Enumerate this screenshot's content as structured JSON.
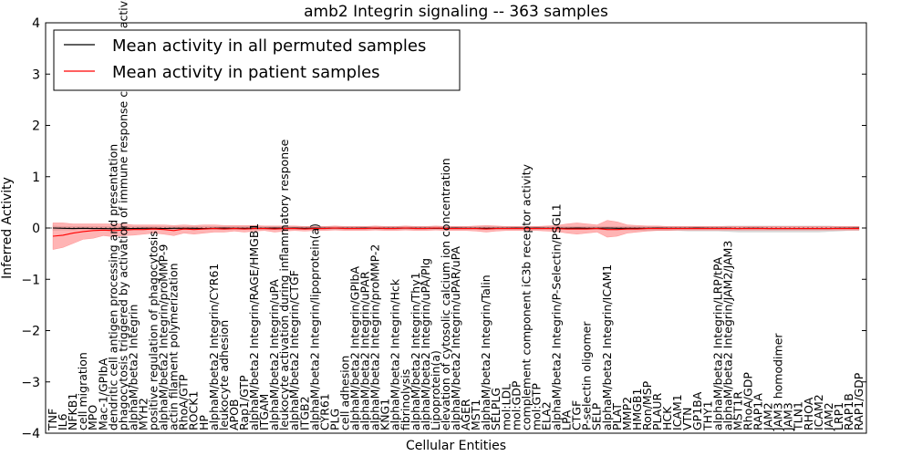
{
  "chart_data": {
    "type": "line",
    "title": "amb2 Integrin signaling -- 363 samples",
    "xlabel": "Cellular Entities",
    "ylabel": "Inferred Activity",
    "ylim": [
      -4,
      4
    ],
    "yticks": [
      "4",
      "3",
      "2",
      "1",
      "0",
      "−1",
      "−2",
      "−3",
      "−4"
    ],
    "grid": false,
    "legend_position": "top-left",
    "colors": {
      "permuted": "#000000",
      "patient": "#ff0000",
      "band_patient": "#ff6a6a",
      "band_permuted": "#c8c8c8",
      "baseline": "#333333"
    },
    "categories": [
      "TNF",
      "IL6",
      "NFKB1",
      "cell migration",
      "MPO",
      "Mac-1/GPIbA",
      "dendritic cell antigen processing and presentation",
      "phagocytosis triggered by activation of immune response cell surface activating receptor",
      "alphaM/beta2 Integrin",
      "MYH2",
      "positive regulation of phagocytosis",
      "alphaM/beta2 Integrin/proMMP-9",
      "actin filament polymerization",
      "RhoA/GTP",
      "ROCK1",
      "HP",
      "alphaM/beta2 Integrin/CYR61",
      "leukocyte adhesion",
      "APOB",
      "Rap1/GTP",
      "alphaM/beta2 Integrin/RAGE/HMGB1",
      "ITGAM",
      "alphaM/beta2 Integrin/uPA",
      "leukocyte activation during inflammatory response",
      "alphaM/beta2 Integrin/CTGF",
      "ITGB2",
      "alphaM/beta2 Integrin/lipoprotein(a)",
      "CYR61",
      "PLG",
      "cell adhesion",
      "alphaM/beta2 Integrin/GPIbA",
      "alphaM/beta2 Integrin/uPAR",
      "alphaM/beta2 Integrin/proMMP-2",
      "KNG1",
      "alphaM/beta2 Integrin/Hck",
      "fibrinolysis",
      "alphaM/beta2 Integrin/Thy1",
      "alphaM/beta2 Integrin/uPA/Plg",
      "Lipoprotein(a)",
      "elevation of cytosolic calcium ion concentration",
      "alphaM/beta2 Integrin/uPAR/uPA",
      "AGER",
      "MST1",
      "alphaM/beta2 Integrin/Talin",
      "SELPLG",
      "mol:LDL",
      "mol:GDP",
      "complement component iC3b receptor activity",
      "mol:GTP",
      "ELA2",
      "alphaM/beta2 Integrin/P-Selectin/PSGL1",
      "LPA",
      "CTGF",
      "P-selectin oligomer",
      "SELP",
      "alphaM/beta2 Integrin/ICAM1",
      "PLAT",
      "MMP2",
      "HMGB1",
      "Ron/MSP",
      "PLAUR",
      "HCK",
      "ICAM1",
      "VTN",
      "GP1BA",
      "THY1",
      "alphaM/beta2 Integrin/LRP/tPA",
      "alphaM/beta2 Integrin/JAM2/JAM3",
      "MST1R",
      "RhoA/GDP",
      "RAP1A",
      "JAM2",
      "JAM3 homodimer",
      "JAM3",
      "TLN1",
      "RHOA",
      "ICAM2",
      "JAM2",
      "LRP1",
      "RAP1B",
      "RAP1/GDP"
    ],
    "series": [
      {
        "name": "Mean activity in all permuted samples",
        "values": [
          0,
          -0.005,
          -0.01,
          -0.005,
          -0.01,
          -0.01,
          -0.015,
          -0.01,
          -0.01,
          -0.005,
          -0.005,
          -0.01,
          -0.005,
          -0.005,
          -0.005,
          -0.01,
          -0.005,
          0,
          -0.005,
          -0.005,
          -0.005,
          -0.005,
          0,
          -0.005,
          0,
          -0.005,
          0,
          -0.005,
          0,
          -0.005,
          -0.005,
          0,
          -0.005,
          -0.005,
          -0.005,
          0,
          -0.005,
          -0.005,
          -0.005,
          -0.005,
          0,
          -0.005,
          -0.005,
          -0.005,
          -0.005,
          -0.005,
          0,
          -0.005,
          0,
          -0.005,
          -0.005,
          -0.005,
          0,
          -0.005,
          -0.005,
          0,
          -0.005,
          -0.005,
          -0.005,
          -0.005,
          0,
          -0.005,
          -0.005,
          -0.005,
          0,
          -0.005,
          -0.005,
          -0.005,
          -0.01,
          -0.005,
          -0.005,
          -0.01,
          -0.01,
          -0.01,
          -0.01,
          -0.01,
          -0.01,
          -0.01,
          -0.005,
          -0.005,
          0
        ],
        "lower": [
          -0.05,
          -0.04,
          -0.04,
          -0.03,
          -0.03,
          -0.03,
          -0.03,
          -0.03,
          -0.03,
          -0.03,
          -0.03,
          -0.03,
          -0.03,
          -0.03,
          -0.03,
          -0.03,
          -0.03,
          -0.03,
          -0.03,
          -0.03,
          -0.03,
          -0.03,
          -0.03,
          -0.03,
          -0.03,
          -0.03,
          -0.03,
          -0.03,
          -0.03,
          -0.03,
          -0.03,
          -0.03,
          -0.03,
          -0.03,
          -0.03,
          -0.03,
          -0.03,
          -0.03,
          -0.03,
          -0.03,
          -0.03,
          -0.03,
          -0.03,
          -0.03,
          -0.03,
          -0.03,
          -0.03,
          -0.03,
          -0.03,
          -0.03,
          -0.03,
          -0.03,
          -0.03,
          -0.03,
          -0.03,
          -0.04,
          -0.04,
          -0.04,
          -0.04,
          -0.05,
          -0.05,
          -0.05,
          -0.05,
          -0.06,
          -0.06,
          -0.06,
          -0.06,
          -0.07,
          -0.08,
          -0.08,
          -0.08,
          -0.08,
          -0.08,
          -0.08,
          -0.08,
          -0.08,
          -0.08,
          -0.07,
          -0.06,
          -0.05,
          -0.05
        ],
        "upper": [
          0.04,
          0.03,
          0.03,
          0.03,
          0.03,
          0.03,
          0.03,
          0.03,
          0.03,
          0.03,
          0.03,
          0.03,
          0.03,
          0.03,
          0.03,
          0.03,
          0.03,
          0.03,
          0.03,
          0.03,
          0.03,
          0.03,
          0.03,
          0.03,
          0.03,
          0.03,
          0.03,
          0.03,
          0.03,
          0.03,
          0.03,
          0.03,
          0.03,
          0.03,
          0.03,
          0.03,
          0.03,
          0.03,
          0.03,
          0.03,
          0.03,
          0.03,
          0.03,
          0.03,
          0.03,
          0.03,
          0.03,
          0.03,
          0.03,
          0.03,
          0.03,
          0.03,
          0.03,
          0.03,
          0.03,
          0.03,
          0.03,
          0.03,
          0.03,
          0.03,
          0.03,
          0.03,
          0.03,
          0.03,
          0.03,
          0.03,
          0.03,
          0.04,
          0.04,
          0.04,
          0.04,
          0.04,
          0.04,
          0.04,
          0.04,
          0.04,
          0.04,
          0.04,
          0.03,
          0.03,
          0.03
        ]
      },
      {
        "name": "Mean activity in patient samples",
        "values": [
          -0.16,
          -0.14,
          -0.1,
          -0.07,
          -0.05,
          -0.04,
          -0.05,
          -0.04,
          -0.03,
          -0.03,
          -0.02,
          -0.03,
          -0.05,
          -0.02,
          -0.03,
          -0.02,
          -0.01,
          -0.02,
          -0.01,
          -0.02,
          -0.01,
          -0.01,
          -0.02,
          -0.01,
          -0.01,
          -0.02,
          -0.01,
          -0.01,
          0,
          -0.01,
          -0.01,
          -0.01,
          0,
          -0.01,
          -0.01,
          0,
          -0.01,
          -0.01,
          0,
          -0.01,
          -0.01,
          -0.01,
          -0.01,
          -0.02,
          -0.01,
          -0.01,
          -0.01,
          -0.01,
          -0.01,
          -0.01,
          -0.01,
          -0.02,
          -0.02,
          -0.02,
          -0.01,
          -0.03,
          -0.03,
          -0.02,
          -0.02,
          -0.01,
          -0.01,
          -0.01,
          -0.01,
          -0.01,
          -0.01,
          -0.01,
          -0.01,
          -0.01,
          -0.01,
          -0.01,
          -0.01,
          -0.01,
          -0.01,
          -0.01,
          -0.01,
          -0.01,
          -0.01,
          -0.01,
          -0.01,
          -0.01,
          -0.01
        ],
        "lower": [
          -0.42,
          -0.38,
          -0.3,
          -0.22,
          -0.2,
          -0.15,
          -0.17,
          -0.15,
          -0.14,
          -0.12,
          -0.1,
          -0.12,
          -0.15,
          -0.1,
          -0.12,
          -0.1,
          -0.08,
          -0.08,
          -0.06,
          -0.08,
          -0.06,
          -0.05,
          -0.08,
          -0.06,
          -0.05,
          -0.06,
          -0.05,
          -0.05,
          -0.04,
          -0.05,
          -0.05,
          -0.05,
          -0.04,
          -0.05,
          -0.05,
          -0.04,
          -0.05,
          -0.05,
          -0.04,
          -0.05,
          -0.05,
          -0.05,
          -0.06,
          -0.08,
          -0.06,
          -0.05,
          -0.05,
          -0.05,
          -0.05,
          -0.06,
          -0.07,
          -0.1,
          -0.12,
          -0.1,
          -0.08,
          -0.18,
          -0.16,
          -0.1,
          -0.08,
          -0.06,
          -0.05,
          -0.05,
          -0.04,
          -0.04,
          -0.04,
          -0.04,
          -0.04,
          -0.04,
          -0.04,
          -0.04,
          -0.04,
          -0.04,
          -0.04,
          -0.04,
          -0.04,
          -0.04,
          -0.04,
          -0.04,
          -0.04,
          -0.04,
          -0.04
        ],
        "upper": [
          0.1,
          0.1,
          0.08,
          0.08,
          0.08,
          0.08,
          0.08,
          0.08,
          0.06,
          0.06,
          0.06,
          0.06,
          0.05,
          0.06,
          0.05,
          0.06,
          0.06,
          0.05,
          0.05,
          0.05,
          0.05,
          0.04,
          0.04,
          0.04,
          0.04,
          0.03,
          0.03,
          0.03,
          0.04,
          0.03,
          0.03,
          0.03,
          0.04,
          0.03,
          0.03,
          0.04,
          0.03,
          0.03,
          0.04,
          0.03,
          0.03,
          0.03,
          0.04,
          0.05,
          0.04,
          0.03,
          0.03,
          0.03,
          0.03,
          0.04,
          0.05,
          0.08,
          0.1,
          0.08,
          0.06,
          0.15,
          0.12,
          0.06,
          0.05,
          0.04,
          0.04,
          0.03,
          0.03,
          0.03,
          0.03,
          0.03,
          0.03,
          0.03,
          0.03,
          0.03,
          0.03,
          0.03,
          0.03,
          0.03,
          0.03,
          0.03,
          0.03,
          0.03,
          0.03,
          0.03,
          0.03
        ]
      }
    ]
  }
}
